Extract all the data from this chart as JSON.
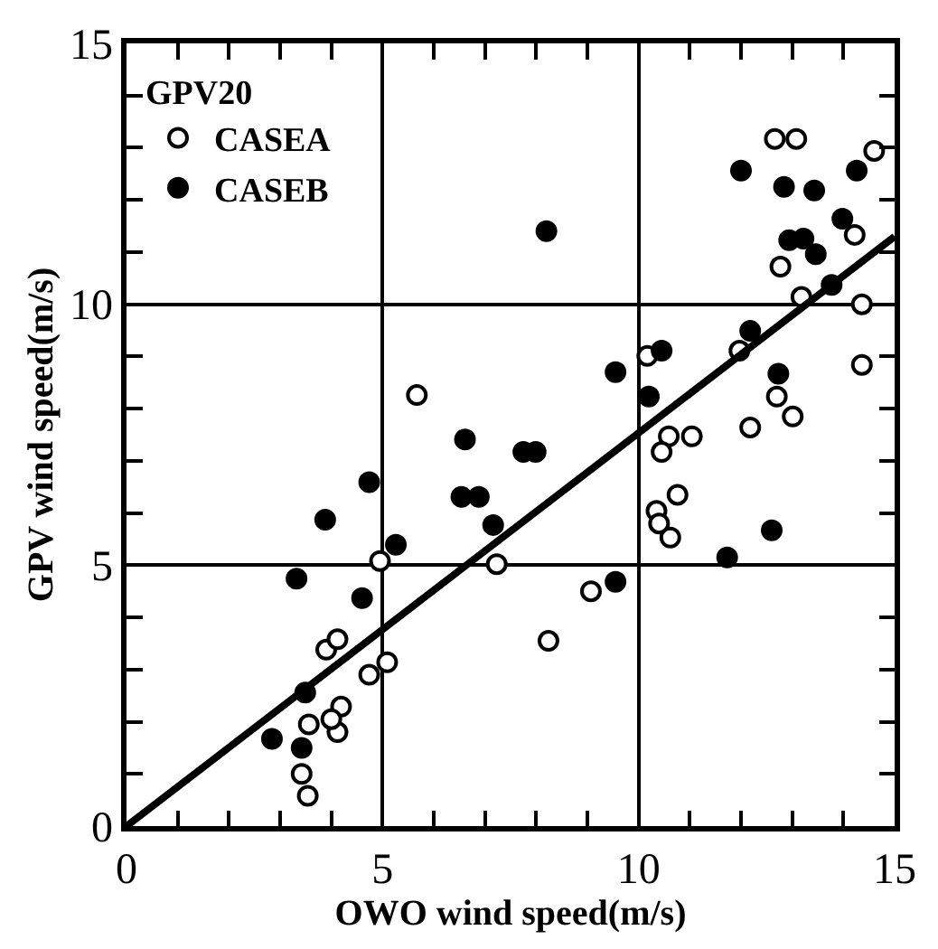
{
  "chart_data": {
    "type": "scatter",
    "xlabel": "OWO wind speed(m/s)",
    "ylabel": "GPV wind speed(m/s)",
    "legend_title": "GPV20",
    "xlim": [
      0,
      15
    ],
    "ylim": [
      0,
      15
    ],
    "xticks": [
      0,
      {
        "value": 1,
        "label": null
      },
      {
        "value": 2,
        "label": null
      },
      {
        "value": 3,
        "label": null
      },
      {
        "value": 4,
        "label": null
      },
      5,
      {
        "value": 6,
        "label": null
      },
      {
        "value": 7,
        "label": null
      },
      {
        "value": 8,
        "label": null
      },
      {
        "value": 9,
        "label": null
      },
      10,
      {
        "value": 11,
        "label": null
      },
      {
        "value": 12,
        "label": null
      },
      {
        "value": 13,
        "label": null
      },
      {
        "value": 14,
        "label": null
      },
      15
    ],
    "yticks": [
      0,
      {
        "value": 1,
        "label": null
      },
      {
        "value": 2,
        "label": null
      },
      {
        "value": 3,
        "label": null
      },
      {
        "value": 4,
        "label": null
      },
      5,
      {
        "value": 6,
        "label": null
      },
      {
        "value": 7,
        "label": null
      },
      {
        "value": 8,
        "label": null
      },
      {
        "value": 9,
        "label": null
      },
      10,
      {
        "value": 11,
        "label": null
      },
      {
        "value": 12,
        "label": null
      },
      {
        "value": 13,
        "label": null
      },
      {
        "value": 14,
        "label": null
      },
      15
    ],
    "grid": true,
    "legend": "top left",
    "marker": "circle",
    "series": [
      {
        "name": "CASEA",
        "color": "#ffffff",
        "x": [
          3.54,
          3.42,
          3.56,
          4.12,
          4.19,
          4.0,
          4.74,
          5.09,
          3.9,
          4.12,
          4.95,
          7.23,
          9.07,
          8.24,
          10.35,
          10.4,
          10.62,
          10.76,
          10.59,
          10.45,
          11.04,
          12.18,
          12.7,
          13.01,
          10.17,
          11.97,
          13.18,
          14.36,
          14.36,
          12.66,
          13.08,
          14.6,
          14.22,
          12.77,
          5.67
        ],
        "values": [
          0.58,
          1.0,
          1.95,
          1.8,
          2.29,
          2.05,
          2.9,
          3.14,
          3.38,
          3.58,
          5.08,
          5.02,
          4.5,
          3.55,
          6.04,
          5.8,
          5.53,
          6.35,
          7.47,
          7.17,
          7.47,
          7.64,
          8.23,
          7.85,
          9.01,
          9.11,
          10.14,
          10.0,
          8.84,
          13.17,
          13.17,
          12.94,
          11.33,
          10.72,
          8.26
        ]
      },
      {
        "name": "CASEB",
        "color": "#000000",
        "x": [
          2.84,
          3.42,
          3.49,
          3.32,
          3.88,
          4.6,
          4.74,
          5.26,
          6.54,
          6.88,
          7.16,
          9.55,
          10.2,
          10.45,
          7.75,
          7.99,
          9.55,
          11.73,
          12.6,
          12.18,
          12.73,
          13.77,
          6.61,
          8.2,
          12.0,
          12.84,
          13.43,
          14.26,
          13.98,
          12.94,
          13.22,
          13.46
        ],
        "values": [
          1.67,
          1.5,
          2.56,
          4.74,
          5.87,
          4.37,
          6.59,
          5.39,
          6.31,
          6.31,
          5.77,
          8.7,
          8.23,
          9.11,
          7.17,
          7.17,
          4.68,
          5.15,
          5.67,
          9.49,
          8.67,
          10.37,
          7.41,
          11.4,
          12.56,
          12.25,
          12.18,
          12.56,
          11.64,
          11.23,
          11.26,
          10.96
        ]
      },
      {
        "type": "line",
        "color": "#000000",
        "marker": "none",
        "line_style": "solid",
        "x": [
          0,
          15
        ],
        "values": [
          0,
          11.3
        ]
      }
    ]
  }
}
